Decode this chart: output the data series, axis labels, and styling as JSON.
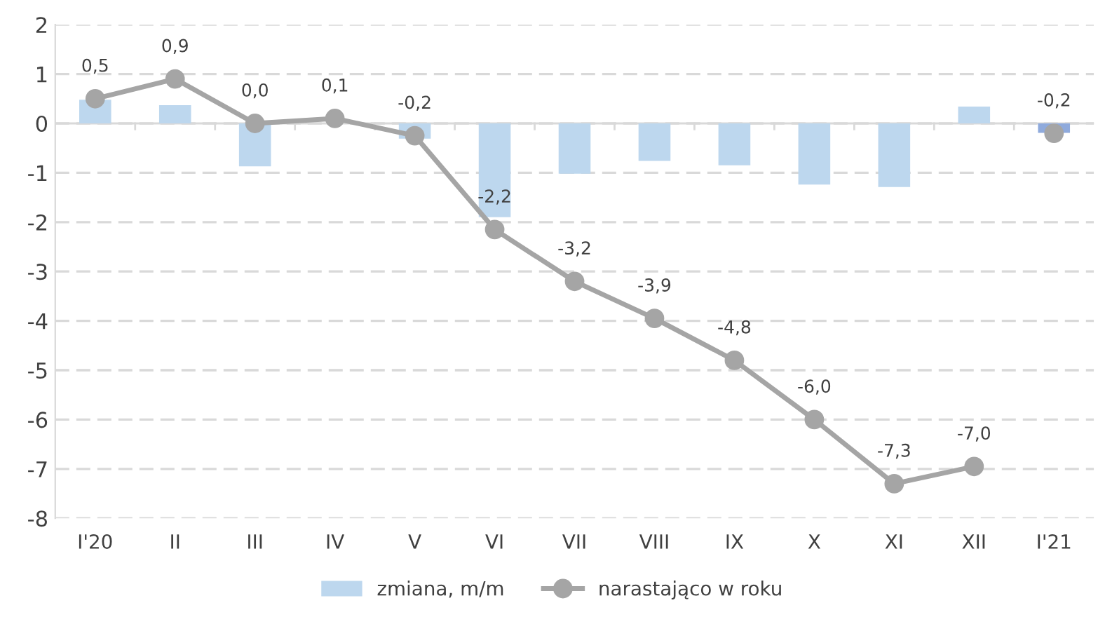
{
  "chart_data": {
    "type": "bar",
    "categories": [
      "I'20",
      "II",
      "III",
      "IV",
      "V",
      "VI",
      "VII",
      "VIII",
      "IX",
      "X",
      "XI",
      "XII",
      "I'21"
    ],
    "ylim": [
      -8,
      2
    ],
    "yticks": [
      {
        "value": -8,
        "label": "-8"
      },
      {
        "value": -7,
        "label": "-7"
      },
      {
        "value": -6,
        "label": "-6"
      },
      {
        "value": -5,
        "label": "-5"
      },
      {
        "value": -4,
        "label": "-4"
      },
      {
        "value": -3,
        "label": "-3"
      },
      {
        "value": -2,
        "label": "-2"
      },
      {
        "value": -1,
        "label": "-1"
      },
      0,
      1,
      2
    ],
    "grid": "y",
    "legend": "bottom",
    "series": [
      {
        "name": "zmiana, m/m",
        "colors": [
          "#bdd7ee",
          "#bdd7ee",
          "#bdd7ee",
          "#bdd7ee",
          "#bdd7ee",
          "#bdd7ee",
          "#bdd7ee",
          "#bdd7ee",
          "#bdd7ee",
          "#bdd7ee",
          "#bdd7ee",
          "#bdd7ee",
          "#8faadc"
        ],
        "values": [
          0.48,
          0.37,
          -0.87,
          0.0,
          -0.31,
          -1.9,
          -1.02,
          -0.76,
          -0.85,
          -1.24,
          -1.29,
          0.34,
          -0.19
        ]
      },
      {
        "name": "narastająco w roku",
        "type": "line",
        "color": "#a5a5a5",
        "marker": "circle",
        "values": [
          0.5,
          0.9,
          0.0,
          0.1,
          -0.25,
          -2.15,
          -3.2,
          -3.95,
          -4.8,
          -6.0,
          -7.3,
          -6.95,
          null
        ],
        "value_labels": [
          "0,5",
          "0,9",
          "0,0",
          "0,1",
          "-0,2",
          "-2,2",
          "-3,2",
          "-3,9",
          "-4,8",
          "-6,0",
          "-7,3",
          "-7,0",
          null
        ]
      },
      {
        "type": "scatter",
        "color": "#a5a5a5",
        "marker": "circle",
        "values": [
          null,
          null,
          null,
          null,
          null,
          null,
          null,
          null,
          null,
          null,
          null,
          null,
          -0.2
        ],
        "value_labels": [
          null,
          null,
          null,
          null,
          null,
          null,
          null,
          null,
          null,
          null,
          null,
          null,
          "-0,2"
        ]
      }
    ]
  }
}
